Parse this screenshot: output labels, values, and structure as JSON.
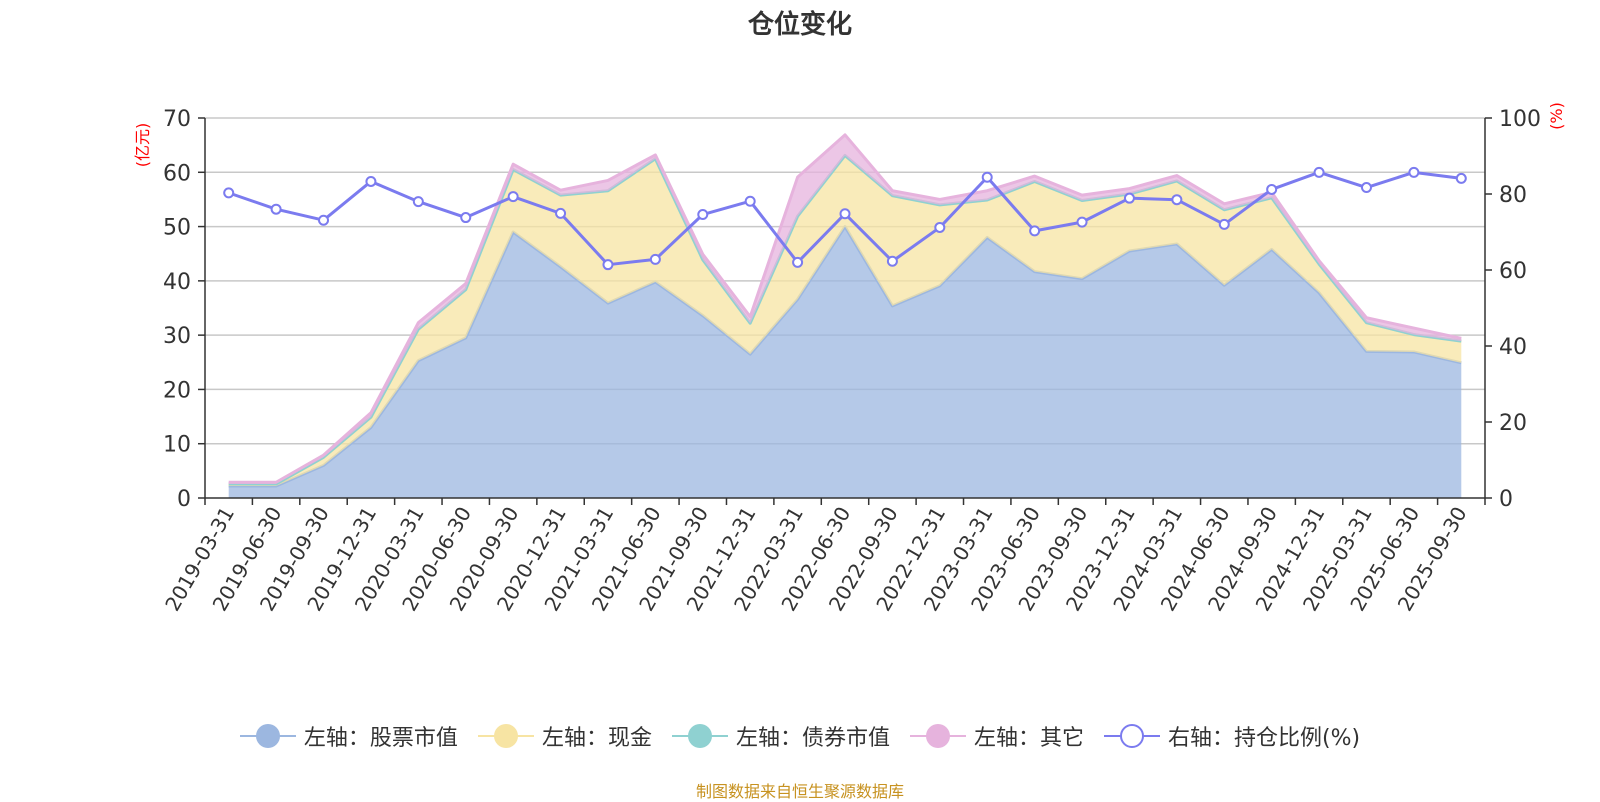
{
  "title": "仓位变化",
  "source": "制图数据来自恒生聚源数据库",
  "colors": {
    "stock": "#9cb7e0",
    "cash": "#f7e4a3",
    "bond": "#8fd1d1",
    "other": "#e6b3dd",
    "ratio": "#7b7bef",
    "source": "#c79220",
    "axis_unit": "#ff0000"
  },
  "chart_data": {
    "type": "area",
    "title": "仓位变化",
    "ylabel_left": "(亿元)",
    "ylabel_right": "(%)",
    "ylim_left": [
      0,
      70
    ],
    "yticks_left": [
      0,
      10,
      20,
      30,
      40,
      50,
      60,
      70
    ],
    "ylim_right": [
      0,
      100
    ],
    "yticks_right": [
      0,
      20,
      40,
      60,
      80,
      100
    ],
    "grid": true,
    "legend_position": "bottom",
    "categories": [
      "2019-03-31",
      "2019-06-30",
      "2019-09-30",
      "2019-12-31",
      "2020-03-31",
      "2020-06-30",
      "2020-09-30",
      "2020-12-31",
      "2021-03-31",
      "2021-06-30",
      "2021-09-30",
      "2021-12-31",
      "2022-03-31",
      "2022-06-30",
      "2022-09-30",
      "2022-12-31",
      "2023-03-31",
      "2023-06-30",
      "2023-09-30",
      "2023-12-31",
      "2024-03-31",
      "2024-06-30",
      "2024-09-30",
      "2024-12-31",
      "2025-03-31",
      "2025-06-30",
      "2025-09-30"
    ],
    "series": [
      {
        "name": "左轴：股票市值",
        "axis": "left",
        "stacked": true,
        "values": [
          2.2,
          2.2,
          6.0,
          13.0,
          25.3,
          29.5,
          49.0,
          42.6,
          35.9,
          39.8,
          33.6,
          26.5,
          36.6,
          50.0,
          35.4,
          39.1,
          48.0,
          41.7,
          40.4,
          45.5,
          46.8,
          39.2,
          45.8,
          37.8,
          27.0,
          26.9,
          24.9
        ]
      },
      {
        "name": "左轴：现金",
        "axis": "left",
        "stacked": true,
        "values": [
          0.4,
          0.4,
          1.5,
          1.9,
          5.8,
          8.9,
          11.5,
          13.2,
          20.7,
          22.7,
          10.3,
          5.7,
          15.3,
          13.1,
          20.3,
          14.9,
          6.9,
          16.6,
          14.4,
          10.5,
          11.6,
          13.9,
          9.5,
          5.3,
          5.3,
          3.2,
          4.0
        ]
      },
      {
        "name": "左轴：债券市值",
        "axis": "left",
        "stacked": true,
        "values": [
          0,
          0,
          0,
          0,
          0,
          0,
          0,
          0,
          0,
          0,
          0,
          0,
          0,
          0,
          0,
          0,
          0,
          0,
          0,
          0,
          0,
          0,
          0,
          0,
          0,
          0,
          0
        ]
      },
      {
        "name": "左轴：其它",
        "axis": "left",
        "stacked": true,
        "values": [
          0.3,
          0.3,
          0.4,
          0.8,
          1.2,
          1.1,
          1.0,
          0.9,
          1.9,
          0.7,
          1.0,
          1.2,
          7.2,
          3.8,
          0.9,
          1.0,
          1.7,
          1.0,
          1.0,
          1.0,
          1.0,
          1.1,
          1.0,
          0.6,
          0.9,
          1.2,
          0.5
        ]
      },
      {
        "name": "右轴：持仓比例(%)",
        "axis": "right",
        "type": "line",
        "values": [
          80.3,
          76.0,
          73.1,
          83.3,
          78.0,
          73.8,
          79.3,
          74.9,
          61.4,
          62.8,
          74.6,
          78.1,
          62.0,
          74.8,
          62.3,
          71.2,
          84.4,
          70.3,
          72.6,
          78.9,
          78.5,
          72.0,
          81.2,
          85.7,
          81.7,
          85.7,
          84.1
        ]
      }
    ]
  }
}
